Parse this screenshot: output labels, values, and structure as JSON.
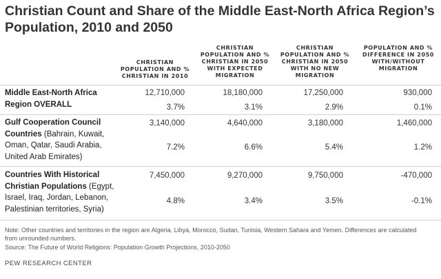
{
  "title": "Christian Count and Share of the Middle East-North Africa Region’s Population, 2010 and 2050",
  "columns": [
    "CHRISTIAN POPULATION AND % CHRISTIAN IN 2010",
    "CHRISTIAN POPULATION AND % CHRISTIAN IN 2050 WITH EXPECTED MIGRATION",
    "CHRISTIAN POPULATION AND % CHRISTIAN IN 2050 WITH NO NEW MIGRATION",
    "POPULATION AND % DIFFERENCE IN 2050 WITH/WITHOUT MIGRATION"
  ],
  "rows": [
    {
      "label_bold": "Middle East-North Africa Region OVERALL",
      "label_rest": "",
      "counts": [
        "12,710,000",
        "18,180,000",
        "17,250,000",
        "930,000"
      ],
      "shares": [
        "3.7%",
        "3.1%",
        "2.9%",
        "0.1%"
      ]
    },
    {
      "label_bold": "Gulf Cooperation Council Countries",
      "label_rest": " (Bahrain, Kuwait, Oman, Qatar, Saudi Arabia, United Arab Emirates)",
      "counts": [
        "3,140,000",
        "4,640,000",
        "3,180,000",
        "1,460,000"
      ],
      "shares": [
        "7.2%",
        "6.6%",
        "5.4%",
        "1.2%"
      ]
    },
    {
      "label_bold": "Countries With Historical Christian Populations",
      "label_rest": " (Egypt, Israel, Iraq, Jordan, Lebanon, Palestinian territories, Syria)",
      "counts": [
        "7,450,000",
        "9,270,000",
        "9,750,000",
        "-470,000"
      ],
      "shares": [
        "4.8%",
        "3.4%",
        "3.5%",
        "-0.1%"
      ]
    }
  ],
  "footer": {
    "note": "Note: Other countries and territories in the region are Algeria, Libya, Morocco, Sudan, Tunisia, Western Sahara and Yemen. Differences are calculated from unrounded numbers.",
    "source": "Source: The Future of World Religions: Population Growth Projections, 2010-2050",
    "brand": "PEW RESEARCH CENTER"
  },
  "chart_data": {
    "type": "table",
    "title": "Christian Count and Share of the Middle East-North Africa Region’s Population, 2010 and 2050",
    "columns": [
      "CHRISTIAN POPULATION AND % CHRISTIAN IN 2010",
      "CHRISTIAN POPULATION AND % CHRISTIAN IN 2050 WITH EXPECTED MIGRATION",
      "CHRISTIAN POPULATION AND % CHRISTIAN IN 2050 WITH NO NEW MIGRATION",
      "POPULATION AND % DIFFERENCE IN 2050 WITH/WITHOUT MIGRATION"
    ],
    "rows": [
      {
        "label": "Middle East-North Africa Region OVERALL",
        "population": [
          12710000,
          18180000,
          17250000,
          930000
        ],
        "percent": [
          3.7,
          3.1,
          2.9,
          0.1
        ]
      },
      {
        "label": "Gulf Cooperation Council Countries (Bahrain, Kuwait, Oman, Qatar, Saudi Arabia, United Arab Emirates)",
        "population": [
          3140000,
          4640000,
          3180000,
          1460000
        ],
        "percent": [
          7.2,
          6.6,
          5.4,
          1.2
        ]
      },
      {
        "label": "Countries With Historical Christian Populations (Egypt, Israel, Iraq, Jordan, Lebanon, Palestinian territories, Syria)",
        "population": [
          7450000,
          9270000,
          9750000,
          -470000
        ],
        "percent": [
          4.8,
          3.4,
          3.5,
          -0.1
        ]
      }
    ]
  }
}
